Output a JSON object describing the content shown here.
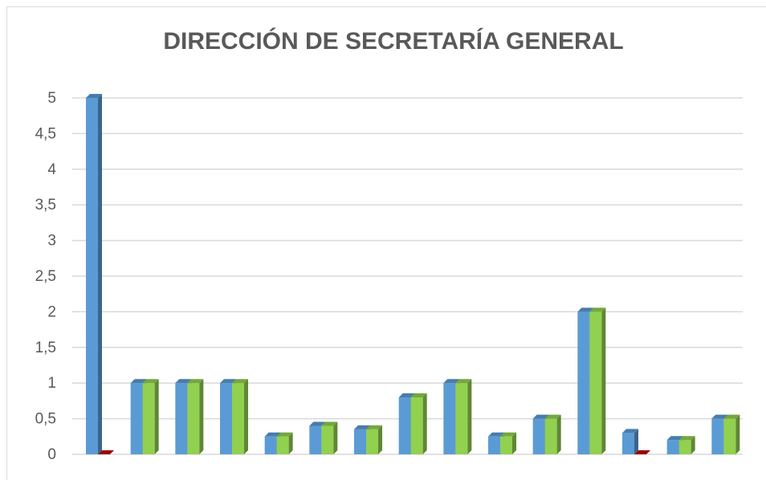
{
  "chart_data": {
    "type": "bar3d",
    "title": "DIRECCIÓN DE SECRETARÍA GENERAL",
    "categories": [
      null,
      null,
      null,
      null,
      null,
      null,
      null,
      null,
      null,
      null,
      null,
      null,
      null,
      null,
      null
    ],
    "series": [
      {
        "color": "#5b9bd5",
        "values": [
          5,
          1,
          1,
          1,
          0.25,
          0.4,
          0.35,
          0.8,
          1,
          0.25,
          0.5,
          2,
          0.3,
          0.2,
          0.5
        ]
      },
      {
        "color": "#92d050",
        "point_colors": [
          "#c00000",
          null,
          null,
          null,
          null,
          null,
          null,
          null,
          null,
          null,
          null,
          null,
          "#c00000",
          null,
          null
        ],
        "values": [
          0,
          1,
          1,
          1,
          0.25,
          0.4,
          0.35,
          0.8,
          1,
          0.25,
          0.5,
          2,
          0,
          0.2,
          0.5
        ]
      }
    ],
    "ylim": [
      0,
      5
    ],
    "yticks": [
      0,
      {
        "value": 0.5,
        "label": "0,5"
      },
      1,
      {
        "value": 1.5,
        "label": "1,5"
      },
      2,
      {
        "value": 2.5,
        "label": "2,5"
      },
      3,
      {
        "value": 3.5,
        "label": "3,5"
      },
      4,
      {
        "value": 4.5,
        "label": "4,5"
      },
      5
    ],
    "grid": true
  }
}
